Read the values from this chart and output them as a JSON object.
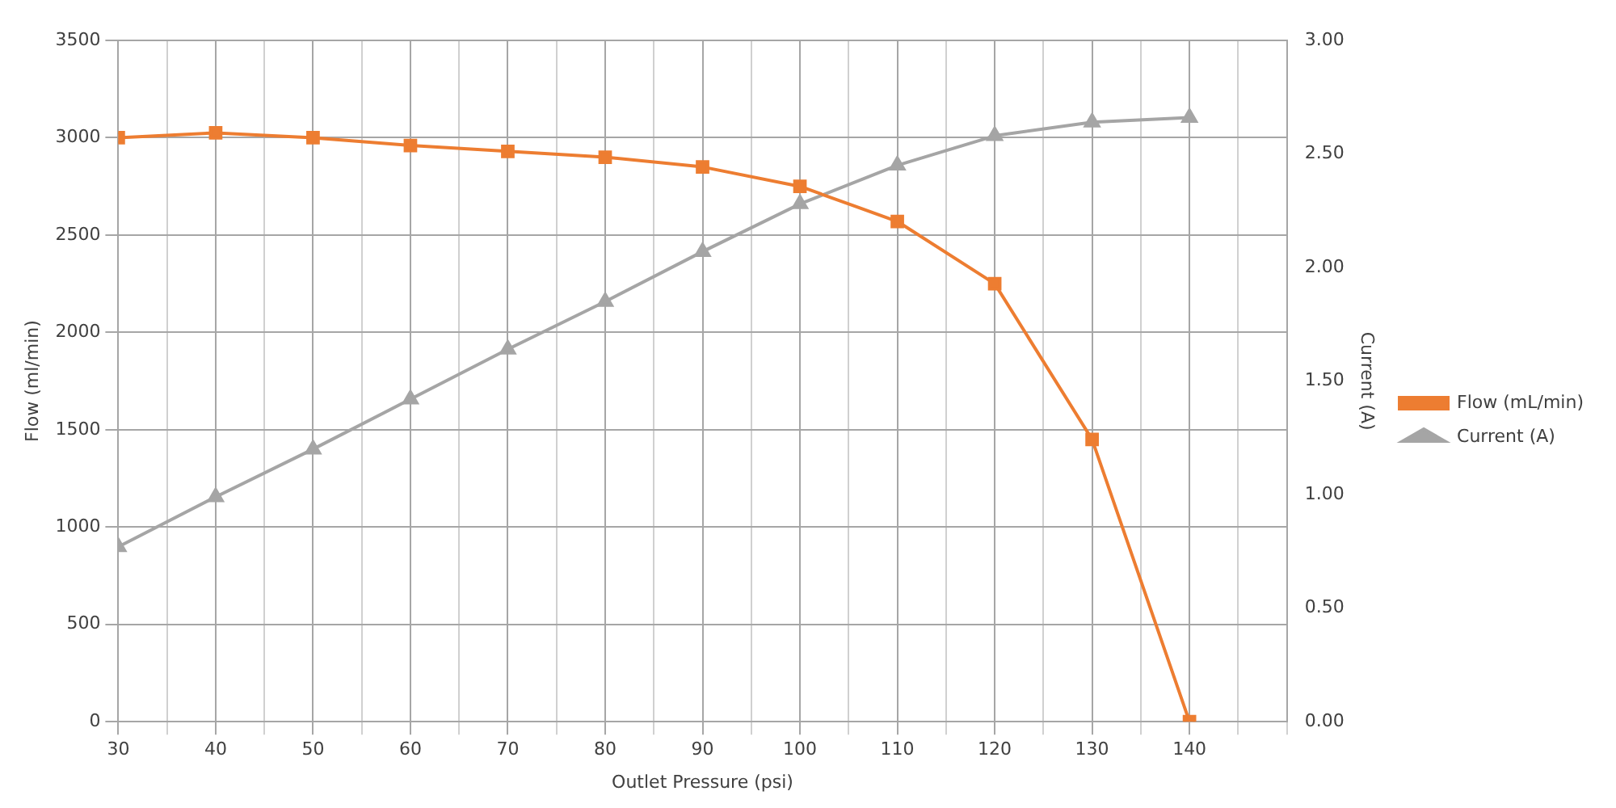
{
  "chart_data": {
    "type": "line",
    "xlabel": "Outlet Pressure (psi)",
    "ylabel": "Flow (ml/min)",
    "y2label": "Current (A)",
    "x": [
      30,
      40,
      50,
      60,
      70,
      80,
      90,
      100,
      110,
      120,
      130,
      140
    ],
    "series": [
      {
        "name": "Flow (mL/min)",
        "color": "#ed7d31",
        "marker": "square",
        "values": [
          3000,
          3025,
          3000,
          2960,
          2930,
          2900,
          2850,
          2750,
          2570,
          2250,
          1450,
          0
        ]
      },
      {
        "name": "Current (A)",
        "color": "#a5a5a5",
        "marker": "triangle",
        "axis": "y2",
        "values": [
          0.77,
          0.99,
          1.2,
          1.42,
          1.64,
          1.85,
          2.07,
          2.28,
          2.45,
          2.58,
          2.64,
          2.66
        ]
      }
    ],
    "xlim": [
      30,
      150
    ],
    "xticks": [
      30,
      {
        "value": 35,
        "label": null
      },
      40,
      {
        "value": 45,
        "label": null
      },
      50,
      {
        "value": 55,
        "label": null
      },
      60,
      {
        "value": 65,
        "label": null
      },
      70,
      {
        "value": 75,
        "label": null
      },
      80,
      {
        "value": 85,
        "label": null
      },
      90,
      {
        "value": 95,
        "label": null
      },
      100,
      {
        "value": 105,
        "label": null
      },
      110,
      {
        "value": 115,
        "label": null
      },
      120,
      {
        "value": 125,
        "label": null
      },
      130,
      {
        "value": 135,
        "label": null
      },
      140,
      {
        "value": 145,
        "label": null
      },
      {
        "value": 150,
        "label": null
      }
    ],
    "ylim": [
      0,
      3500
    ],
    "yticks": [
      0,
      500,
      1000,
      1500,
      2000,
      2500,
      3000,
      3500
    ],
    "y2lim": [
      0,
      3
    ],
    "y2ticks": [
      {
        "value": 0,
        "label": "0.00"
      },
      {
        "value": 0.5,
        "label": "0.50"
      },
      {
        "value": 1,
        "label": "1.00"
      },
      {
        "value": 1.5,
        "label": "1.50"
      },
      {
        "value": 2,
        "label": "2.00"
      },
      {
        "value": 2.5,
        "label": "2.50"
      },
      {
        "value": 3,
        "label": "3.00"
      }
    ],
    "grid": true,
    "legend": "right",
    "line_style": "solid"
  }
}
